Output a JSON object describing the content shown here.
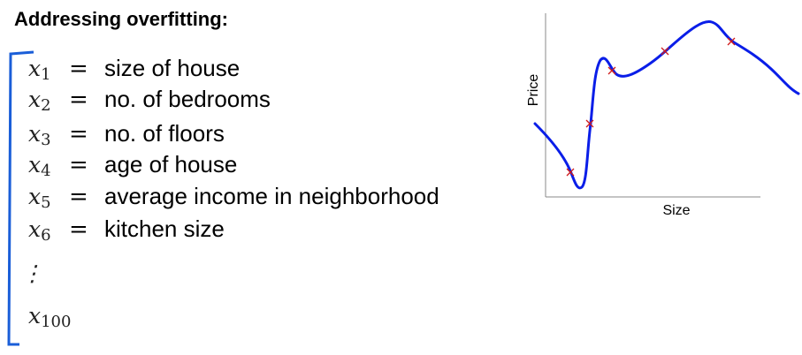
{
  "title": "Addressing overfitting:",
  "features": [
    {
      "var": "x",
      "sub": "1",
      "eq": "=",
      "desc": "size of house"
    },
    {
      "var": "x",
      "sub": "2",
      "eq": "=",
      "desc": "no. of bedrooms"
    },
    {
      "var": "x",
      "sub": "3",
      "eq": "=",
      "desc": "no. of floors"
    },
    {
      "var": "x",
      "sub": "4",
      "eq": "=",
      "desc": "age of house"
    },
    {
      "var": "x",
      "sub": "5",
      "eq": "=",
      "desc": "average income in neighborhood"
    },
    {
      "var": "x",
      "sub": "6",
      "eq": "=",
      "desc": "kitchen size"
    }
  ],
  "ellipsis": "⋮",
  "last": {
    "var": "x",
    "sub": "100"
  },
  "chart": {
    "x_label": "Size",
    "y_label": "Price"
  }
}
